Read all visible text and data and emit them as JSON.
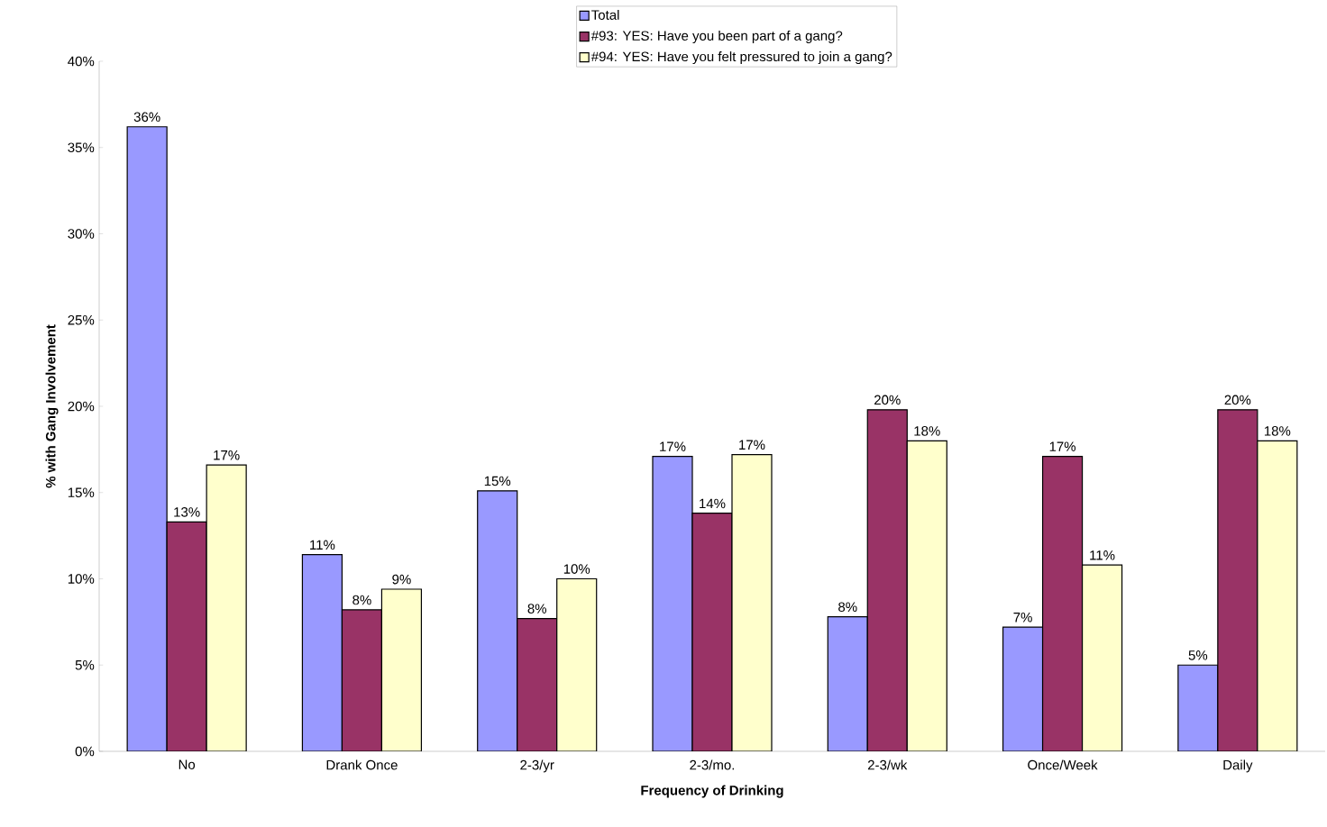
{
  "chart_data": {
    "type": "bar",
    "xlabel": "Frequency of Drinking",
    "ylabel": "% with Gang Involvement",
    "categories": [
      "No",
      "Drank Once",
      "2-3/yr",
      "2-3/mo.",
      "2-3/wk",
      "Once/Week",
      "Daily"
    ],
    "series": [
      {
        "name": "Total",
        "color": "#9999ff",
        "values": [
          36.2,
          11.4,
          15.1,
          17.1,
          7.8,
          7.2,
          5.0
        ],
        "value_labels": [
          "36%",
          "11%",
          "15%",
          "17%",
          "8%",
          "7%",
          "5%"
        ]
      },
      {
        "name": "#93: YES: Have you been part of a gang?",
        "color": "#993366",
        "values": [
          13.3,
          8.2,
          7.7,
          13.8,
          19.8,
          17.1,
          19.8
        ],
        "value_labels": [
          "13%",
          "8%",
          "8%",
          "14%",
          "20%",
          "17%",
          "20%"
        ]
      },
      {
        "name": "#94: YES: Have you felt pressured to join a gang?",
        "color": "#ffffcc",
        "values": [
          16.6,
          9.4,
          10.0,
          17.2,
          18.0,
          10.8,
          18.0
        ],
        "value_labels": [
          "17%",
          "9%",
          "10%",
          "17%",
          "18%",
          "11%",
          "18%"
        ]
      }
    ],
    "ylim": [
      0,
      40
    ],
    "yticks": [
      {
        "value": 0,
        "label": "0%"
      },
      {
        "value": 5,
        "label": "5%"
      },
      {
        "value": 10,
        "label": "10%"
      },
      {
        "value": 15,
        "label": "15%"
      },
      {
        "value": 20,
        "label": "20%"
      },
      {
        "value": 25,
        "label": "25%"
      },
      {
        "value": 30,
        "label": "30%"
      },
      {
        "value": 35,
        "label": "35%"
      },
      {
        "value": 40,
        "label": "40%"
      }
    ],
    "legend": "top"
  }
}
